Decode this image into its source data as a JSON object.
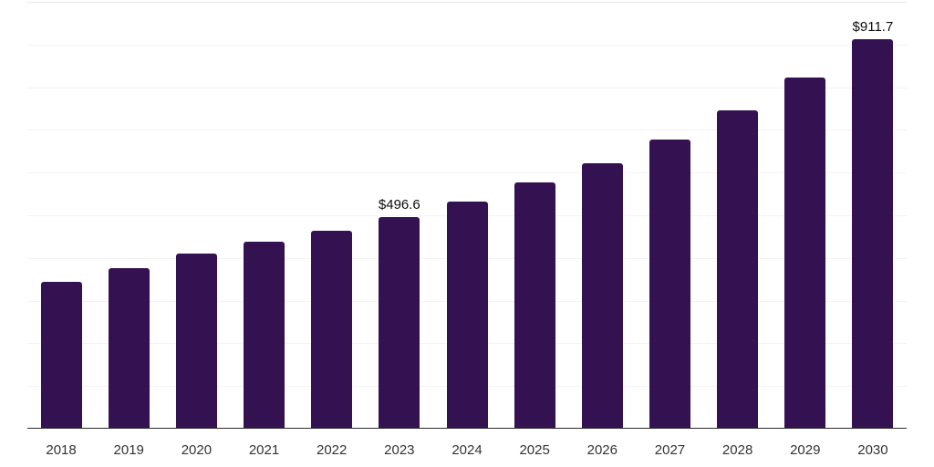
{
  "chart_data": {
    "type": "bar",
    "title": "",
    "xlabel": "",
    "ylabel": "",
    "categories": [
      "2018",
      "2019",
      "2020",
      "2021",
      "2022",
      "2023",
      "2024",
      "2025",
      "2026",
      "2027",
      "2028",
      "2029",
      "2030"
    ],
    "values": [
      345,
      377,
      411,
      437,
      463,
      496.6,
      533,
      576,
      622,
      678,
      745,
      823,
      911.7
    ],
    "data_labels": {
      "2023": "$496.6",
      "2030": "$911.7"
    },
    "ylim": [
      0,
      1000
    ],
    "gridline_step": 100,
    "grid": "horizontal-only",
    "legend": "none",
    "colors": {
      "bar": "#341251",
      "axis_line": "#2b2b2b",
      "gridline": "#f3f3f4",
      "top_gridline": "#e6e6e6",
      "value_label": "#0d0d0d",
      "tick_label": "#333333",
      "background": "#ffffff"
    }
  }
}
